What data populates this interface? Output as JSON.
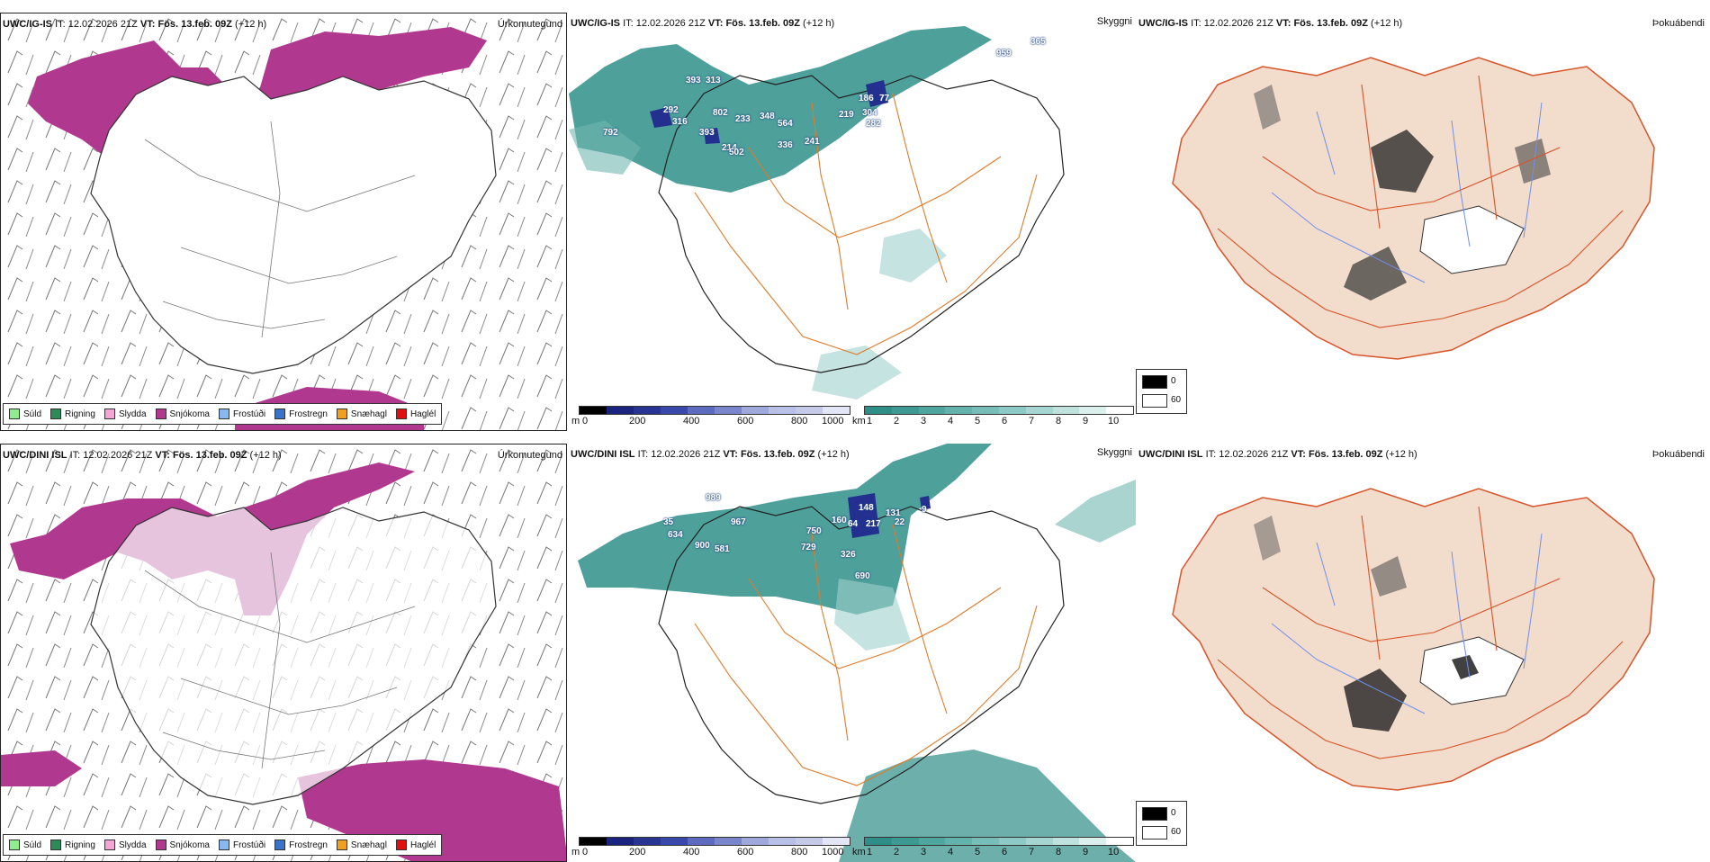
{
  "rows": [
    {
      "model": "UWC/IG-IS",
      "it_label": "IT:",
      "it_value": "12.02.2026 21Z",
      "vt_label": "VT:",
      "vt_value": "Fös. 13.feb. 09Z",
      "lead": "(+12 h)",
      "visibility_numbers": [
        "393",
        "313",
        "292",
        "802",
        "316",
        "233",
        "792",
        "393",
        "214",
        "348",
        "564",
        "502",
        "336",
        "241",
        "186",
        "77",
        "219",
        "304",
        "282",
        "959",
        "365"
      ]
    },
    {
      "model": "UWC/DINI ISL",
      "it_label": "IT:",
      "it_value": "12.02.2026 21Z",
      "vt_label": "VT:",
      "vt_value": "Fös. 13.feb. 09Z",
      "lead": "(+12 h)",
      "visibility_numbers": [
        "989",
        "35",
        "967",
        "634",
        "900",
        "581",
        "750",
        "729",
        "148",
        "160",
        "64",
        "217",
        "326",
        "690",
        "131",
        "22",
        "9"
      ]
    }
  ],
  "panel_titles": {
    "precip": "Úrkomutegund",
    "visibility": "Skyggni",
    "cloud": "Þokuábendi"
  },
  "precip_legend": [
    {
      "label": "Súld",
      "color": "#90ee90"
    },
    {
      "label": "Rigning",
      "color": "#2e8b57"
    },
    {
      "label": "Slydda",
      "color": "#f4a6d7"
    },
    {
      "label": "Snjókoma",
      "color": "#b0398f"
    },
    {
      "label": "Frostúði",
      "color": "#87b8f0"
    },
    {
      "label": "Frostregn",
      "color": "#3a74c9"
    },
    {
      "label": "Snæhagl",
      "color": "#f0a020"
    },
    {
      "label": "Haglél",
      "color": "#e01010"
    }
  ],
  "scale_m": {
    "unit": "m",
    "ticks": [
      "0",
      "200",
      "400",
      "600",
      "800",
      "1000"
    ]
  },
  "scale_km": {
    "unit": "km",
    "ticks": [
      "1",
      "2",
      "3",
      "4",
      "5",
      "6",
      "7",
      "8",
      "9",
      "10"
    ]
  },
  "vis_legend": {
    "top": "0",
    "bottom": "60"
  },
  "colors": {
    "snow": "#b0398f",
    "teal": "#2f8f88",
    "road": "#e07a2a",
    "land_fill": "#f2dccb",
    "river": "#6f8ff0",
    "dark_blue": "#23308f"
  }
}
